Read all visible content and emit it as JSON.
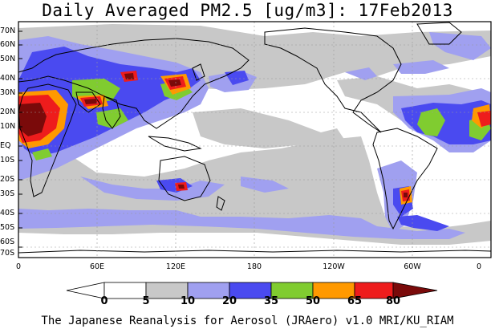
{
  "title": "Daily Averaged PM2.5 [ug/m3]: 17Feb2013",
  "footer": "The Japanese Reanalysis for Aerosol (JRAero) v1.0 MRI/KU_RIAM",
  "lat_labels": [
    "70N",
    "60N",
    "50N",
    "40N",
    "30N",
    "20N",
    "10N",
    "EQ",
    "10S",
    "20S",
    "30S",
    "40S",
    "50S",
    "60S",
    "70S"
  ],
  "lon_labels": [
    "0",
    "60E",
    "120E",
    "180",
    "120W",
    "60W",
    "0"
  ],
  "colorbar": {
    "labels": [
      "0",
      "5",
      "10",
      "20",
      "35",
      "50",
      "65",
      "80"
    ],
    "colors": [
      "#ffffff",
      "#c8c8c8",
      "#a0a0f0",
      "#4a4af0",
      "#80cc30",
      "#ff9900",
      "#ee1c1c",
      "#7a0a0a"
    ]
  },
  "colors": {
    "land_outline": "#000000",
    "grid": "#9a9a9a"
  }
}
